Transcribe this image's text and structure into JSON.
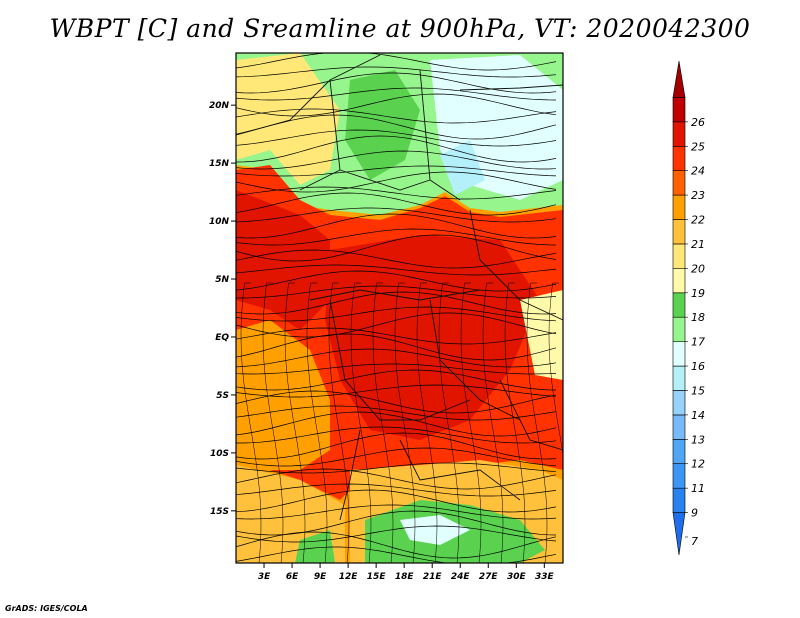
{
  "title": "WBPT [C] and Sreamline at 900hPa, VT: 2020042300",
  "footer": "GrADS: IGES/COLA",
  "chart_data": {
    "type": "heatmap",
    "title": "WBPT [C] and Sreamline at 900hPa, VT: 2020042300",
    "variable": "Wet-bulb potential temperature",
    "units": "C",
    "level": "900hPa",
    "valid_time": "2020042300",
    "overlay": "streamlines",
    "x_ticks": [
      "3E",
      "6E",
      "9E",
      "12E",
      "15E",
      "18E",
      "21E",
      "24E",
      "27E",
      "30E",
      "33E"
    ],
    "x_tick_values": [
      3,
      6,
      9,
      12,
      15,
      18,
      21,
      24,
      27,
      30,
      33
    ],
    "y_ticks": [
      "20N",
      "15N",
      "10N",
      "5N",
      "EQ",
      "5S",
      "10S",
      "15S"
    ],
    "y_tick_values": [
      20,
      15,
      10,
      5,
      0,
      -5,
      -10,
      -15
    ],
    "xlim": [
      0,
      35
    ],
    "ylim": [
      -19.5,
      24.5
    ],
    "colorbar": {
      "labels": [
        "7",
        "9",
        "11",
        "12",
        "13",
        "14",
        "15",
        "16",
        "17",
        "18",
        "19",
        "20",
        "21",
        "22",
        "23",
        "24",
        "25",
        "26"
      ],
      "colors": [
        "#1e6eeb",
        "#2882f0",
        "#3c96f5",
        "#50a5f5",
        "#78b9fa",
        "#96d2fa",
        "#b4f0fa",
        "#e1ffff",
        "#96f58c",
        "#5ad250",
        "#fffaaa",
        "#ffe878",
        "#ffc03c",
        "#ffa000",
        "#ff6000",
        "#ff3200",
        "#e11400",
        "#c00000",
        "#a50000"
      ]
    }
  }
}
